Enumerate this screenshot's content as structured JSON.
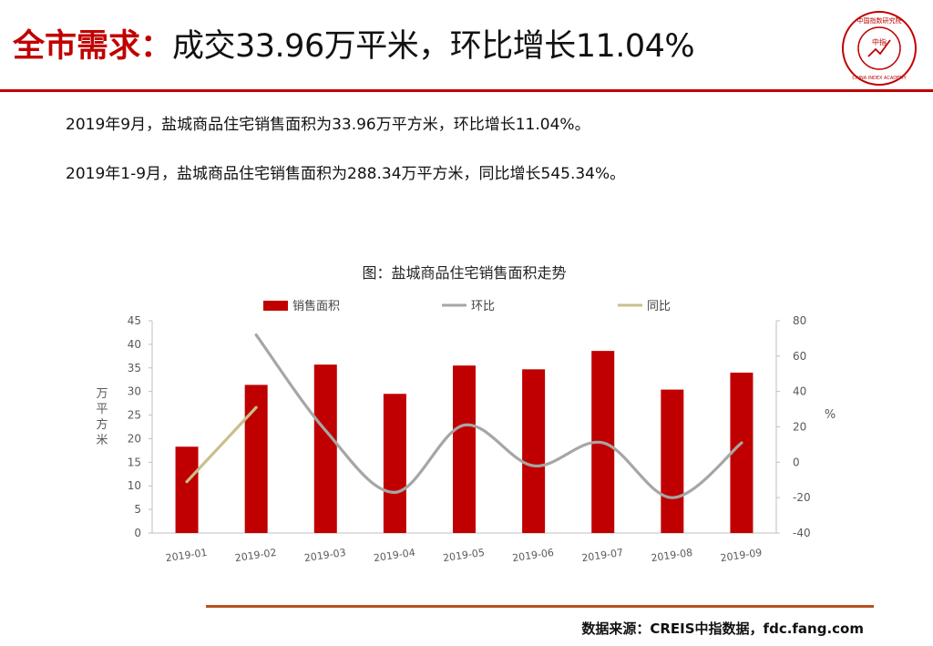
{
  "header": {
    "title_accent": "全市需求：",
    "title_rest": "成交33.96万平米，环比增长11.04%",
    "logo_text_top": "中国指数研究院",
    "logo_text_bottom": "CHINA INDEX ACADEMY",
    "logo_center": "中指"
  },
  "body": {
    "line1": "2019年9月，盐城商品住宅销售面积为33.96万平方米，环比增长11.04%。",
    "line2": "2019年1-9月，盐城商品住宅销售面积为288.34万平方米，同比增长545.34%。"
  },
  "chart_data": {
    "type": "bar",
    "title": "图：盐城商品住宅销售面积走势",
    "categories": [
      "2019-01",
      "2019-02",
      "2019-03",
      "2019-04",
      "2019-05",
      "2019-06",
      "2019-07",
      "2019-08",
      "2019-09"
    ],
    "series": [
      {
        "name": "销售面积",
        "type": "bar",
        "axis": "left",
        "color": "#c00000",
        "values": [
          18.3,
          31.4,
          35.7,
          29.5,
          35.5,
          34.7,
          38.6,
          30.4,
          34.0
        ]
      },
      {
        "name": "环比",
        "type": "line",
        "axis": "right",
        "color": "#a6a6a6",
        "values": [
          null,
          72,
          18,
          -17,
          21,
          -2,
          11,
          -20,
          11
        ]
      },
      {
        "name": "同比",
        "type": "line",
        "axis": "right",
        "color": "#c8bf8c",
        "values": [
          -11,
          31,
          null,
          null,
          null,
          null,
          null,
          null,
          null
        ]
      }
    ],
    "ylabel": "万平方米",
    "ylim": [
      0,
      45
    ],
    "yticks": [
      0,
      5,
      10,
      15,
      20,
      25,
      30,
      35,
      40,
      45
    ],
    "y2label": "%",
    "y2lim": [
      -40,
      80
    ],
    "y2ticks": [
      -40,
      -20,
      0,
      20,
      40,
      60,
      80
    ],
    "legend": "top",
    "grid": false
  },
  "footer": {
    "source": "数据来源：CREIS中指数据，fdc.fang.com"
  }
}
